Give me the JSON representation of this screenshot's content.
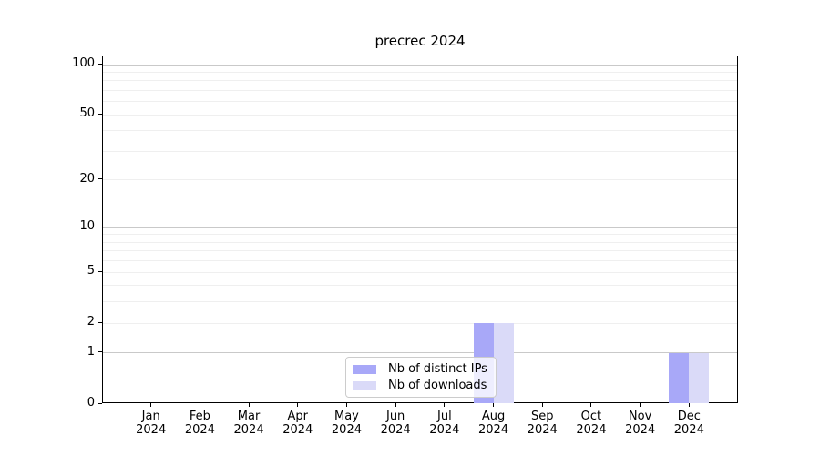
{
  "chart_data": {
    "type": "bar",
    "title": "precrec 2024",
    "categories": [
      "Jan",
      "Feb",
      "Mar",
      "Apr",
      "May",
      "Jun",
      "Jul",
      "Aug",
      "Sep",
      "Oct",
      "Nov",
      "Dec"
    ],
    "category_year": "2024",
    "series": [
      {
        "name": "Nb of distinct IPs",
        "color": "#a8a8f8",
        "values": [
          0,
          0,
          0,
          0,
          0,
          0,
          0,
          2,
          0,
          0,
          0,
          1
        ]
      },
      {
        "name": "Nb of downloads",
        "color": "#dadaf8",
        "values": [
          0,
          0,
          0,
          0,
          0,
          0,
          0,
          2,
          0,
          0,
          0,
          1
        ]
      }
    ],
    "yscale": "log1p",
    "ylim": [
      0,
      112
    ],
    "yticks": [
      0,
      1,
      2,
      5,
      10,
      20,
      50,
      100
    ],
    "grid_major": [
      1,
      10,
      100
    ],
    "grid_minor": [
      2,
      3,
      4,
      5,
      6,
      7,
      8,
      9,
      20,
      30,
      40,
      50,
      60,
      70,
      80,
      90
    ],
    "grid": "on",
    "legend_position": "lower center",
    "xlabel": "",
    "ylabel": ""
  },
  "colors": {
    "series_ips": "#a8a8f8",
    "series_downloads": "#dadaf8",
    "grid_minor": "#efefef",
    "grid_major": "#c9c9c9",
    "axis": "#000000",
    "legend_border": "#cccccc"
  }
}
